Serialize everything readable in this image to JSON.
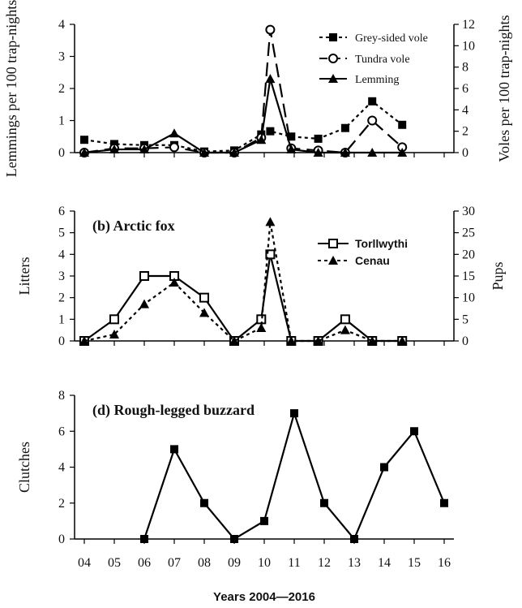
{
  "chart_data": [
    {
      "type": "line",
      "panel_title": "",
      "ylabel_left": "Lemmings per 100 trap-nights",
      "ylabel_right": "Voles per 100 trap-nights",
      "ylim_left": [
        0,
        4
      ],
      "yticks_left": [
        "0",
        "1",
        "2",
        "3",
        "4"
      ],
      "ylim_right": [
        0,
        12
      ],
      "yticks_right": [
        "0",
        "2",
        "4",
        "6",
        "8",
        "10",
        "12"
      ],
      "legend_position": "top-right",
      "series": [
        {
          "name": "Grey-sided vole",
          "axis": "right",
          "style": "dotted",
          "marker": "square-filled",
          "x": [
            2004,
            2005,
            2006,
            2007,
            2008,
            2009,
            2009.9,
            2010.2,
            2010.9,
            2011.8,
            2012.7,
            2013.6,
            2014.6
          ],
          "values": [
            1.2,
            0.8,
            0.7,
            0.7,
            0.1,
            0.2,
            1.7,
            2.0,
            1.5,
            1.3,
            2.3,
            4.8,
            2.6
          ]
        },
        {
          "name": "Tundra vole",
          "axis": "right",
          "style": "dashed",
          "marker": "circle-open",
          "x": [
            2004,
            2005,
            2006,
            2007,
            2008,
            2009,
            2009.9,
            2010.2,
            2010.9,
            2011.8,
            2012.7,
            2013.6,
            2014.6
          ],
          "values": [
            0.0,
            0.4,
            0.4,
            0.5,
            0.0,
            0.0,
            1.4,
            11.5,
            0.4,
            0.2,
            0.0,
            3.0,
            0.5
          ]
        },
        {
          "name": "Lemming",
          "axis": "left",
          "style": "solid",
          "marker": "triangle-filled",
          "x": [
            2004,
            2005,
            2006,
            2007,
            2008,
            2009,
            2009.9,
            2010.2,
            2010.9,
            2011.8,
            2012.7,
            2013.6,
            2014.6
          ],
          "values": [
            0.0,
            0.1,
            0.1,
            0.6,
            0.0,
            0.0,
            0.4,
            2.3,
            0.1,
            0.0,
            0.0,
            0.0,
            0.0
          ]
        }
      ]
    },
    {
      "type": "line",
      "panel_title": "(b) Arctic fox",
      "ylabel_left": "Litters",
      "ylabel_right": "Pups",
      "ylim_left": [
        0,
        6
      ],
      "yticks_left": [
        "0",
        "1",
        "2",
        "3",
        "4",
        "5",
        "6"
      ],
      "ylim_right": [
        0,
        30
      ],
      "yticks_right": [
        "0",
        "5",
        "10",
        "15",
        "20",
        "25",
        "30"
      ],
      "legend_position": "top-right",
      "series": [
        {
          "name": "Torllwythi",
          "axis": "left",
          "style": "solid",
          "marker": "square-open",
          "x": [
            2004,
            2005,
            2006,
            2007,
            2008,
            2009,
            2009.9,
            2010.2,
            2010.9,
            2011.8,
            2012.7,
            2013.6,
            2014.6
          ],
          "values": [
            0,
            1,
            3,
            3,
            2,
            0,
            1,
            4,
            0,
            0,
            1,
            0,
            0
          ]
        },
        {
          "name": "Cenau",
          "axis": "right",
          "style": "dotted",
          "marker": "triangle-filled",
          "x": [
            2004,
            2005,
            2006,
            2007,
            2008,
            2009,
            2009.9,
            2010.2,
            2010.9,
            2011.8,
            2012.7,
            2013.6,
            2014.6
          ],
          "values": [
            0,
            1.5,
            8.5,
            13.5,
            6.5,
            0,
            3,
            27.5,
            0,
            0,
            2.5,
            0,
            0
          ]
        }
      ]
    },
    {
      "type": "line",
      "panel_title": "(d) Rough-legged buzzard",
      "ylabel_left": "Clutches",
      "ylim_left": [
        0,
        8
      ],
      "yticks_left": [
        "0",
        "2",
        "4",
        "6",
        "8"
      ],
      "xlabel": "Years 2004—2016",
      "xticks": [
        "04",
        "05",
        "06",
        "07",
        "08",
        "09",
        "10",
        "11",
        "12",
        "13",
        "14",
        "15",
        "16"
      ],
      "series": [
        {
          "name": "",
          "style": "solid",
          "marker": "square-filled",
          "x": [
            2006,
            2007,
            2008,
            2009,
            2010,
            2011,
            2012,
            2013,
            2014,
            2015,
            2016
          ],
          "values": [
            0,
            5,
            2,
            0,
            1,
            7,
            2,
            0,
            4,
            6,
            2
          ]
        }
      ]
    }
  ]
}
